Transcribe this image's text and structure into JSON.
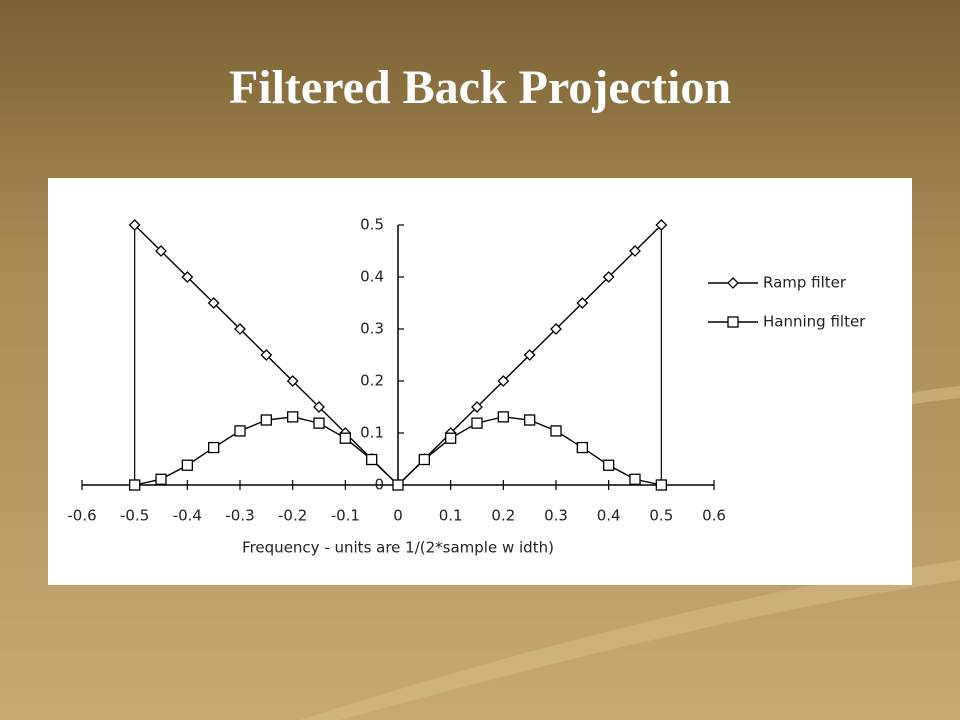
{
  "chart_data": {
    "type": "line",
    "title": "Filtered Back Projection",
    "xlabel": "Frequency - units are 1/(2*sample w idth)",
    "x": [
      -0.5,
      -0.45,
      -0.4,
      -0.35,
      -0.3,
      -0.25,
      -0.2,
      -0.15,
      -0.1,
      -0.05,
      0,
      0.05,
      0.1,
      0.15,
      0.2,
      0.25,
      0.3,
      0.35,
      0.4,
      0.45,
      0.5
    ],
    "series": [
      {
        "name": "Ramp filter",
        "color": "#000000",
        "marker": "diamond",
        "values": [
          0.5,
          0.45,
          0.4,
          0.35,
          0.3,
          0.25,
          0.2,
          0.15,
          0.1,
          0.05,
          0,
          0.05,
          0.1,
          0.15,
          0.2,
          0.25,
          0.3,
          0.35,
          0.4,
          0.45,
          0.5
        ]
      },
      {
        "name": "Hanning filter",
        "color": "#000000",
        "marker": "square",
        "values": [
          0,
          0.011,
          0.038,
          0.072,
          0.104,
          0.125,
          0.131,
          0.119,
          0.09,
          0.049,
          0,
          0.049,
          0.09,
          0.119,
          0.131,
          0.125,
          0.104,
          0.072,
          0.038,
          0.011,
          0
        ]
      }
    ],
    "xlim": [
      -0.6,
      0.6
    ],
    "xticks": [
      -0.6,
      -0.5,
      -0.4,
      -0.3,
      -0.2,
      -0.1,
      0,
      0.1,
      0.2,
      0.3,
      0.4,
      0.5,
      0.6
    ],
    "ylim": [
      0,
      0.5
    ],
    "yticks": [
      0,
      0.1,
      0.2,
      0.3,
      0.4,
      0.5
    ],
    "grid": false,
    "legend": "right"
  }
}
